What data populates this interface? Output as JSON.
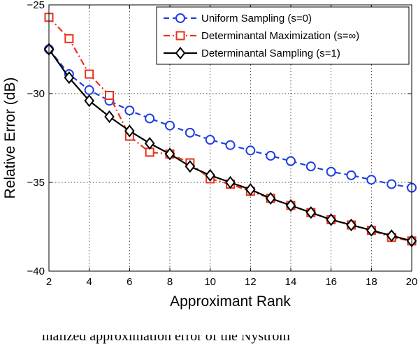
{
  "chart_data": {
    "type": "line",
    "title": "",
    "xlabel": "Approximant Rank",
    "ylabel": "Relative Error (dB)",
    "xlim": [
      2,
      20
    ],
    "ylim": [
      -40,
      -25
    ],
    "xticks": [
      2,
      4,
      6,
      8,
      10,
      12,
      14,
      16,
      18,
      20
    ],
    "yticks": [
      -40,
      -35,
      -30,
      -25
    ],
    "grid": true,
    "legend_position": "top-right",
    "x": [
      2,
      3,
      4,
      5,
      6,
      7,
      8,
      9,
      10,
      11,
      12,
      13,
      14,
      15,
      16,
      17,
      18,
      19,
      20
    ],
    "series": [
      {
        "name": "Uniform Sampling (s=0)",
        "color": "#1f3fe0",
        "line_style": "dashed",
        "marker": "circle",
        "values": [
          -27.5,
          -28.9,
          -29.8,
          -30.4,
          -30.95,
          -31.4,
          -31.8,
          -32.2,
          -32.6,
          -32.9,
          -33.2,
          -33.5,
          -33.8,
          -34.1,
          -34.4,
          -34.6,
          -34.85,
          -35.1,
          -35.3
        ]
      },
      {
        "name": "Determinantal Maximization (s=∞)",
        "color": "#e8321c",
        "line_style": "dashdot",
        "marker": "square",
        "values": [
          -25.7,
          -26.9,
          -28.9,
          -30.1,
          -32.4,
          -33.3,
          -33.4,
          -33.9,
          -34.8,
          -35.1,
          -35.5,
          -35.9,
          -36.3,
          -36.7,
          -37.1,
          -37.4,
          -37.7,
          -38.1,
          -38.3
        ]
      },
      {
        "name": "Determinantal Sampling (s=1)",
        "color": "#000000",
        "line_style": "solid",
        "marker": "diamond",
        "values": [
          -27.5,
          -29.1,
          -30.4,
          -31.3,
          -32.1,
          -32.8,
          -33.4,
          -34.1,
          -34.6,
          -35.0,
          -35.4,
          -35.9,
          -36.3,
          -36.7,
          -37.1,
          -37.4,
          -37.7,
          -38.0,
          -38.3
        ]
      }
    ]
  },
  "caption": "malized approximation error of the Nyström"
}
